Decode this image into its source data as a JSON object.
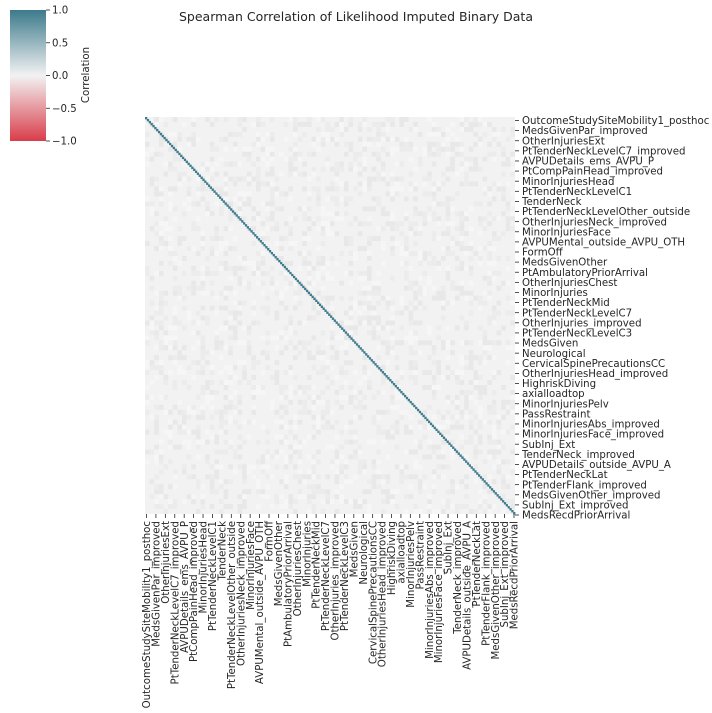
{
  "chart_data": {
    "type": "heatmap",
    "title": "Spearman Correlation of Likelihood Imputed Binary Data",
    "colorbar": {
      "label": "Correlation",
      "range": [
        -1.0,
        1.0
      ],
      "ticks": [
        "1.0",
        "0.5",
        "0.0",
        "−0.5",
        "−1.0"
      ],
      "colors": {
        "positive": "#3c7a8c",
        "neutral": "#f2f2f2",
        "negative": "#d93d4a"
      }
    },
    "matrix_description_values": {
      "diagonal": 1.0,
      "off_diagonal": 0.0
    },
    "row_labels": [
      "OutcomeStudySiteMobility1_posthoc",
      "MedsGivenPar_improved",
      "OtherInjuriesExt",
      "PtTenderNeckLevelC7_improved",
      "AVPUDetails_ems_AVPU_P",
      "PtCompPainHead_improved",
      "MinorInjuriesHead",
      "PtTenderNeckLevelC1",
      "TenderNeck",
      "PtTenderNeckLevelOther_outside",
      "OtherInjuriesNeck_improved",
      "MinorInjuriesFace",
      "AVPUMental_outside_AVPU_OTH",
      "FormOff",
      "MedsGivenOther",
      "PtAmbulatoryPriorArrival",
      "OtherInjuriesChest",
      "MinorInjuries",
      "PtTenderNeckMid",
      "PtTenderNeckLevelC7",
      "OtherInjuries_improved",
      "PtTenderNeckLevelC3",
      "MedsGiven",
      "Neurological",
      "CervicalSpinePrecautionsCC",
      "OtherInjuriesHead_improved",
      "HighriskDiving",
      "axialloadtop",
      "MinorInjuriesPelv",
      "PassRestraint",
      "MinorInjuriesAbs_improved",
      "MinorInjuriesFace_improved",
      "SubInj_Ext",
      "TenderNeck_improved",
      "AVPUDetails_outside_AVPU_A",
      "PtTenderNeckLat",
      "PtTenderFlank_improved",
      "MedsGivenOther_improved",
      "SubInj_Ext_improved",
      "MedsRecdPriorArrival"
    ],
    "col_labels": [
      "OutcomeStudySiteMobility1_posthoc",
      "MedsGivenPar_improved",
      "OtherInjuriesExt",
      "PtTenderNeckLevelC7_improved",
      "AVPUDetails_ems_AVPU_P",
      "PtCompPainHead_improved",
      "MinorInjuriesHead",
      "PtTenderNeckLevelC1",
      "TenderNeck",
      "PtTenderNeckLevelOther_outside",
      "OtherInjuriesNeck_improved",
      "MinorInjuriesFace",
      "AVPUMental_outside_AVPU_OTH",
      "FormOff",
      "MedsGivenOther",
      "PtAmbulatoryPriorArrival",
      "OtherInjuriesChest",
      "MinorInjuries",
      "PtTenderNeckMid",
      "PtTenderNeckLevelC7",
      "OtherInjuries_improved",
      "PtTenderNeckLevelC3",
      "MedsGiven",
      "Neurological",
      "CervicalSpinePrecautionsCC",
      "OtherInjuriesHead_improved",
      "HighriskDiving",
      "axialloadtop",
      "MinorInjuriesPelv",
      "PassRestraint",
      "MinorInjuriesAbs_improved",
      "MinorInjuriesFace_improved",
      "SubInj_Ext",
      "TenderNeck_improved",
      "AVPUDetails_outside_AVPU_A",
      "PtTenderNeckLat",
      "PtTenderFlank_improved",
      "MedsGivenOther_improved",
      "SubInj_Ext_improved",
      "MedsRecdPriorArrival"
    ],
    "grid": false,
    "legend": "top-left colorbar"
  }
}
